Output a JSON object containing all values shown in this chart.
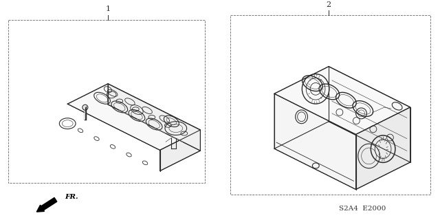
{
  "bg_color": "#ffffff",
  "label1": "1",
  "label2": "2",
  "fr_label": "FR.",
  "code_label": "S2A4  E2000",
  "lc": "#2a2a2a",
  "lw_main": 0.8,
  "lw_thin": 0.4,
  "lw_med": 0.6,
  "font_size_label": 8,
  "font_size_code": 7
}
